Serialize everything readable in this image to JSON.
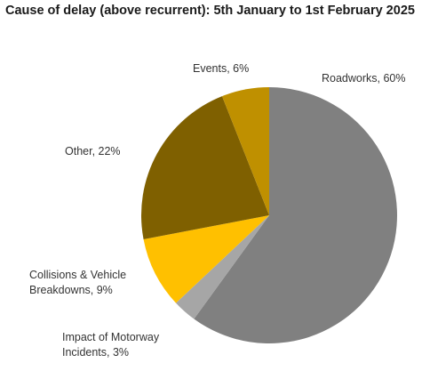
{
  "chart_data": {
    "type": "pie",
    "title": "Cause of delay (above recurrent): 5th January to 1st February 2025",
    "slices": [
      {
        "label": "Roadworks",
        "value": 60,
        "display": [
          "Roadworks, 60%"
        ],
        "color": "#808080"
      },
      {
        "label": "Impact of Motorway Incidents",
        "value": 3,
        "display": [
          "Impact of Motorway",
          "Incidents, 3%"
        ],
        "color": "#a6a6a6"
      },
      {
        "label": "Collisions & Vehicle Breakdowns",
        "value": 9,
        "display": [
          "Collisions & Vehicle",
          "Breakdowns, 9%"
        ],
        "color": "#ffc000"
      },
      {
        "label": "Other",
        "value": 22,
        "display": [
          "Other, 22%"
        ],
        "color": "#7f6000"
      },
      {
        "label": "Events",
        "value": 6,
        "display": [
          "Events, 6%"
        ],
        "color": "#bf9000"
      }
    ],
    "start_angle_deg": 0,
    "direction": "clockwise",
    "legend": "none"
  }
}
